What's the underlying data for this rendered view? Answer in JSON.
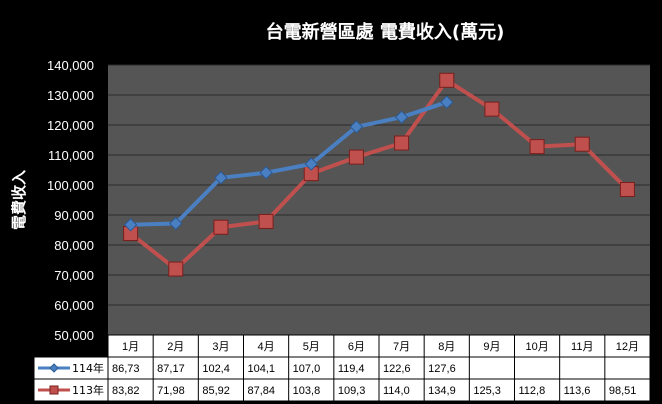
{
  "chart_data": {
    "type": "line",
    "title": "台電新營區處 電費收入(萬元)",
    "ylabel": "電費收入",
    "xlabel": "",
    "ylim": [
      50000,
      140000
    ],
    "yticks": [
      "50,000",
      "60,000",
      "70,000",
      "80,000",
      "90,000",
      "100,000",
      "110,000",
      "120,000",
      "130,000",
      "140,000"
    ],
    "categories": [
      "1月",
      "2月",
      "3月",
      "4月",
      "5月",
      "6月",
      "7月",
      "8月",
      "9月",
      "10月",
      "11月",
      "12月"
    ],
    "grid": "horizontal",
    "legend": "data-table-left",
    "series": [
      {
        "name": "114年",
        "color": "#4a7fc1",
        "marker": "diamond",
        "values": [
          86730,
          87170,
          102400,
          104100,
          107000,
          119400,
          122600,
          127600,
          null,
          null,
          null,
          null
        ],
        "table_labels": [
          "86,73",
          "87,17",
          "102,4",
          "104,1",
          "107,0",
          "119,4",
          "122,6",
          "127,6",
          "",
          "",
          "",
          ""
        ]
      },
      {
        "name": "113年",
        "color": "#c0504d",
        "marker": "square",
        "values": [
          83820,
          71980,
          85920,
          87840,
          103800,
          109300,
          114000,
          134900,
          125300,
          112800,
          113600,
          98510
        ],
        "table_labels": [
          "83,82",
          "71,98",
          "85,92",
          "87,84",
          "103,8",
          "109,3",
          "114,0",
          "134,9",
          "125,3",
          "112,8",
          "113,6",
          "98,51"
        ]
      }
    ]
  }
}
